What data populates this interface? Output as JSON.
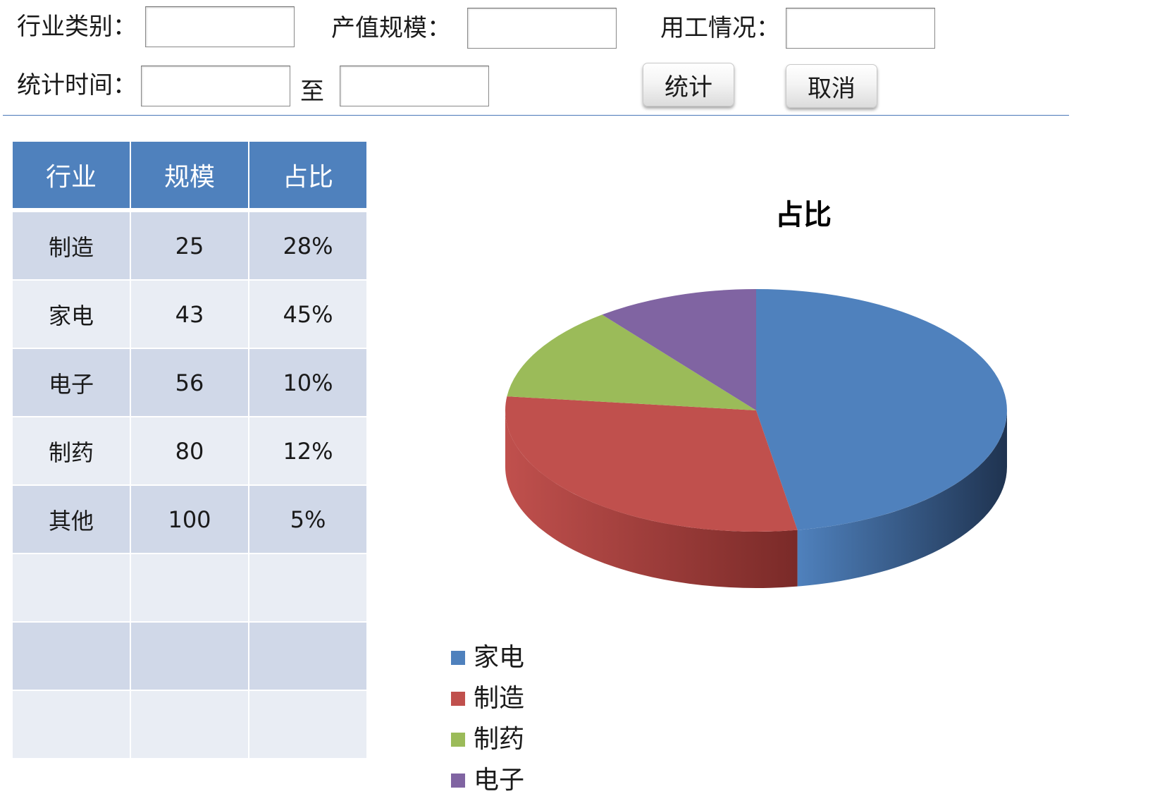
{
  "filters": {
    "industry_label": "行业类别：",
    "industry_value": "",
    "output_label": "产值规模：",
    "output_value": "",
    "employment_label": "用工情况：",
    "employment_value": "",
    "period_label": "统计时间：",
    "period_start": "",
    "to_label": "至",
    "period_end": ""
  },
  "buttons": {
    "stat_label": "统计",
    "cancel_label": "取消"
  },
  "table": {
    "headers": [
      "行业",
      "规模",
      "占比"
    ],
    "rows": [
      [
        "制造",
        "25",
        "28%"
      ],
      [
        "家电",
        "43",
        "45%"
      ],
      [
        "电子",
        "56",
        "10%"
      ],
      [
        "制药",
        "80",
        "12%"
      ],
      [
        "其他",
        "100",
        "5%"
      ],
      [
        "",
        "",
        ""
      ],
      [
        "",
        "",
        ""
      ],
      [
        "",
        "",
        ""
      ]
    ]
  },
  "chart_data": {
    "type": "pie",
    "title": "占比",
    "slices": [
      {
        "label": "家电",
        "value": 45,
        "color": "#4f81bd",
        "side": "#1f3350"
      },
      {
        "label": "制造",
        "value": 28,
        "color": "#c0504d",
        "side": "#7a2a28"
      },
      {
        "label": "制药",
        "value": 12,
        "color": "#9bbb59",
        "side": "#5e7433"
      },
      {
        "label": "电子",
        "value": 10,
        "color": "#8064a2",
        "side": "#4a3a60"
      }
    ],
    "legend_position": "bottom-left",
    "three_d": true
  }
}
